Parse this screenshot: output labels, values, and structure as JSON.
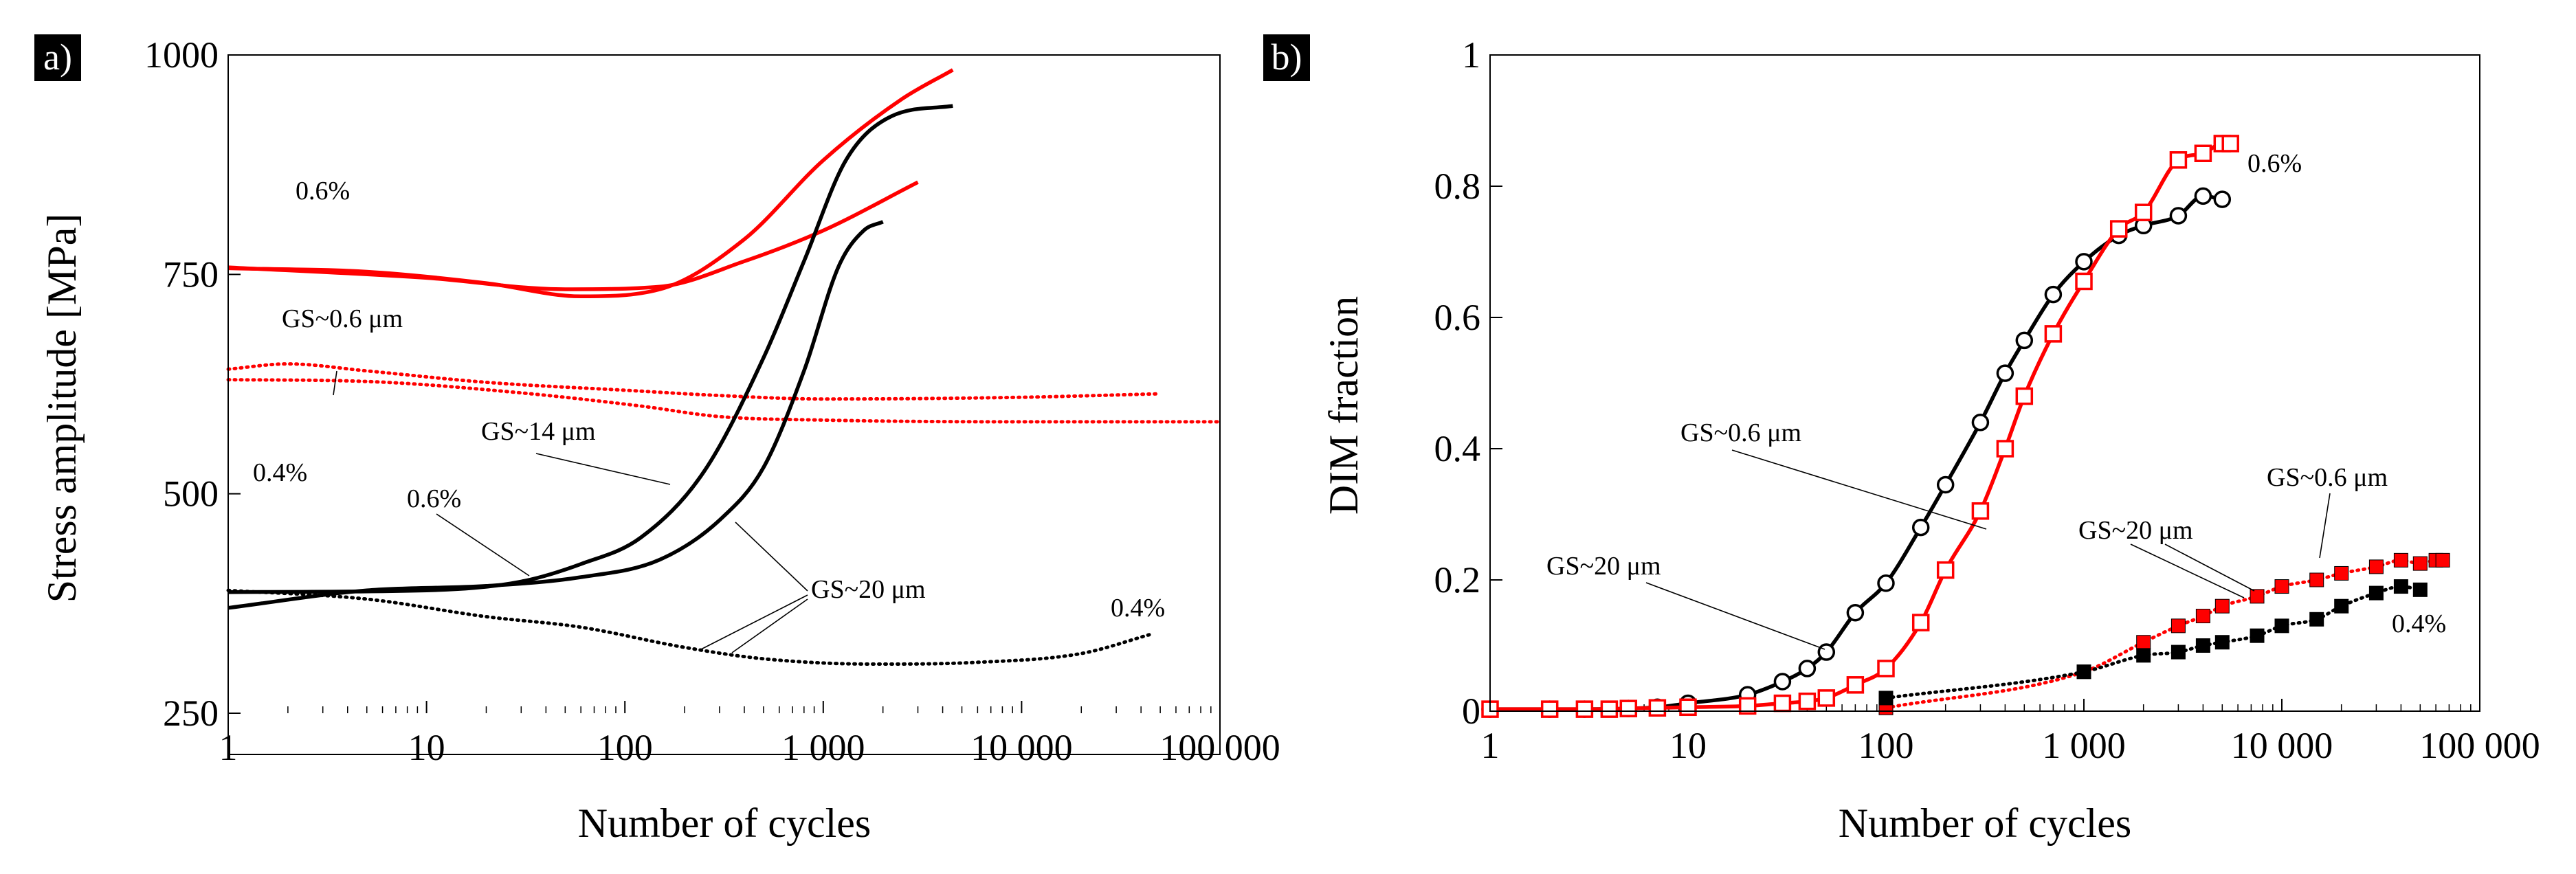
{
  "chart_data": [
    {
      "type": "line",
      "panel_label": "a)",
      "xlabel": "Number of cycles",
      "ylabel": "Stress amplitude  [MPa]",
      "xscale": "log",
      "xlim": [
        1,
        100000
      ],
      "ylim": [
        250,
        1000
      ],
      "x_ticks": [
        1,
        10,
        100,
        1000,
        10000,
        100000
      ],
      "x_tick_labels": [
        "1",
        "10",
        "100",
        "1 000",
        "10 000",
        "100 000"
      ],
      "y_ticks": [
        250,
        500,
        750,
        1000
      ],
      "y_tick_labels": [
        "250",
        "500",
        "750",
        "1000"
      ],
      "grid": false,
      "series": [
        {
          "color": "#ff0000",
          "style": "solid",
          "points": [
            [
              1,
              757
            ],
            [
              5,
              753
            ],
            [
              20,
              740
            ],
            [
              60,
              725
            ],
            [
              150,
              733
            ],
            [
              400,
              790
            ],
            [
              1000,
              880
            ],
            [
              2500,
              950
            ],
            [
              4500,
              983
            ]
          ]
        },
        {
          "color": "#ff0000",
          "style": "solid",
          "points": [
            [
              1,
              758
            ],
            [
              10,
              746
            ],
            [
              50,
              733
            ],
            [
              150,
              736
            ],
            [
              400,
              765
            ],
            [
              1000,
              800
            ],
            [
              3000,
              855
            ]
          ]
        },
        {
          "color": "#ff0000",
          "style": "dotted",
          "points": [
            [
              1,
              642
            ],
            [
              2,
              648
            ],
            [
              5,
              640
            ],
            [
              20,
              627
            ],
            [
              100,
              618
            ],
            [
              300,
              612
            ],
            [
              1000,
              608
            ],
            [
              10000,
              610
            ],
            [
              50000,
              614
            ]
          ]
        },
        {
          "color": "#ff0000",
          "style": "dotted",
          "points": [
            [
              1,
              630
            ],
            [
              5,
              628
            ],
            [
              30,
              615
            ],
            [
              120,
              600
            ],
            [
              300,
              588
            ],
            [
              1000,
              584
            ],
            [
              10000,
              582
            ],
            [
              100000,
              582
            ]
          ]
        },
        {
          "color": "#000000",
          "style": "solid",
          "points": [
            [
              1,
              388
            ],
            [
              10,
              390
            ],
            [
              30,
              400
            ],
            [
              60,
              420
            ],
            [
              120,
              450
            ],
            [
              250,
              525
            ],
            [
              500,
              655
            ],
            [
              800,
              765
            ],
            [
              1300,
              880
            ],
            [
              2200,
              930
            ],
            [
              4500,
              942
            ]
          ]
        },
        {
          "color": "#000000",
          "style": "solid",
          "points": [
            [
              1,
              370
            ],
            [
              5,
              390
            ],
            [
              20,
              395
            ],
            [
              60,
              405
            ],
            [
              150,
              425
            ],
            [
              300,
              470
            ],
            [
              500,
              530
            ],
            [
              800,
              640
            ],
            [
              1200,
              760
            ],
            [
              1600,
              800
            ],
            [
              2000,
              810
            ]
          ]
        },
        {
          "color": "#000000",
          "style": "dotted",
          "points": [
            [
              1,
              390
            ],
            [
              5,
              380
            ],
            [
              20,
              360
            ],
            [
              60,
              348
            ],
            [
              200,
              325
            ],
            [
              500,
              312
            ],
            [
              1800,
              306
            ],
            [
              6000,
              308
            ],
            [
              20000,
              318
            ],
            [
              45000,
              340
            ]
          ]
        }
      ],
      "annotations": [
        "0.6%",
        "GS~0.6 μm",
        "0.4%",
        "GS~14 μm",
        "0.6%",
        "GS~20 μm",
        "0.4%"
      ]
    },
    {
      "type": "scatter",
      "panel_label": "b)",
      "xlabel": "Number of cycles",
      "ylabel": "DIM fraction",
      "xscale": "log",
      "xlim": [
        1,
        100000
      ],
      "ylim": [
        0,
        1
      ],
      "x_ticks": [
        1,
        10,
        100,
        1000,
        10000,
        100000
      ],
      "x_tick_labels": [
        "1",
        "10",
        "100",
        "1 000",
        "10 000",
        "100 000"
      ],
      "y_ticks": [
        0,
        0.2,
        0.4,
        0.6,
        0.8,
        1
      ],
      "y_tick_labels": [
        "0",
        "0.2",
        "0.4",
        "0.6",
        "0.8",
        "1"
      ],
      "grid": false,
      "series": [
        {
          "color": "#000000",
          "marker": "open-circle",
          "line": "solid",
          "points": [
            [
              1,
              0.003
            ],
            [
              2,
              0.003
            ],
            [
              3,
              0.003
            ],
            [
              5,
              0.004
            ],
            [
              7,
              0.006
            ],
            [
              10,
              0.012
            ],
            [
              20,
              0.025
            ],
            [
              30,
              0.045
            ],
            [
              40,
              0.065
            ],
            [
              50,
              0.09
            ],
            [
              70,
              0.15
            ],
            [
              100,
              0.195
            ],
            [
              150,
              0.28
            ],
            [
              200,
              0.345
            ],
            [
              300,
              0.44
            ],
            [
              400,
              0.515
            ],
            [
              500,
              0.565
            ],
            [
              700,
              0.635
            ],
            [
              1000,
              0.685
            ],
            [
              1500,
              0.725
            ],
            [
              2000,
              0.74
            ],
            [
              3000,
              0.755
            ],
            [
              4000,
              0.785
            ],
            [
              5000,
              0.78
            ]
          ]
        },
        {
          "color": "#ff0000",
          "marker": "open-square",
          "line": "solid",
          "points": [
            [
              1,
              0.003
            ],
            [
              2,
              0.003
            ],
            [
              3,
              0.003
            ],
            [
              4,
              0.003
            ],
            [
              5,
              0.004
            ],
            [
              7,
              0.005
            ],
            [
              10,
              0.006
            ],
            [
              20,
              0.008
            ],
            [
              30,
              0.012
            ],
            [
              40,
              0.015
            ],
            [
              50,
              0.02
            ],
            [
              70,
              0.04
            ],
            [
              100,
              0.065
            ],
            [
              150,
              0.135
            ],
            [
              200,
              0.215
            ],
            [
              300,
              0.305
            ],
            [
              400,
              0.4
            ],
            [
              500,
              0.48
            ],
            [
              700,
              0.575
            ],
            [
              1000,
              0.655
            ],
            [
              1500,
              0.735
            ],
            [
              2000,
              0.76
            ],
            [
              3000,
              0.84
            ],
            [
              4000,
              0.85
            ],
            [
              5000,
              0.865
            ],
            [
              5500,
              0.865
            ]
          ]
        },
        {
          "color": "#ff0000",
          "marker": "filled-square",
          "line": "dotted",
          "points": [
            [
              100,
              0.005
            ],
            [
              1000,
              0.06
            ],
            [
              2000,
              0.105
            ],
            [
              3000,
              0.13
            ],
            [
              4000,
              0.145
            ],
            [
              5000,
              0.16
            ],
            [
              7500,
              0.175
            ],
            [
              10000,
              0.19
            ],
            [
              15000,
              0.2
            ],
            [
              20000,
              0.21
            ],
            [
              30000,
              0.22
            ],
            [
              40000,
              0.23
            ],
            [
              50000,
              0.225
            ],
            [
              60000,
              0.23
            ],
            [
              65000,
              0.23
            ]
          ]
        },
        {
          "color": "#000000",
          "marker": "filled-square",
          "line": "dotted",
          "points": [
            [
              100,
              0.02
            ],
            [
              1000,
              0.06
            ],
            [
              2000,
              0.085
            ],
            [
              3000,
              0.09
            ],
            [
              4000,
              0.1
            ],
            [
              5000,
              0.105
            ],
            [
              7500,
              0.115
            ],
            [
              10000,
              0.13
            ],
            [
              15000,
              0.14
            ],
            [
              20000,
              0.16
            ],
            [
              30000,
              0.18
            ],
            [
              40000,
              0.19
            ],
            [
              50000,
              0.185
            ]
          ]
        }
      ],
      "annotations": [
        "0.6%",
        "GS~0.6 μm",
        "GS~20 μm",
        "GS~0.6 μm",
        "GS~20 μm",
        "0.4%"
      ]
    }
  ]
}
